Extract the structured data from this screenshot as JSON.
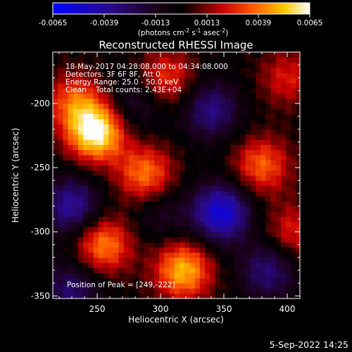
{
  "colorbar": {
    "ticks": [
      "-0.0065",
      "-0.0039",
      "-0.0013",
      "0.0013",
      "0.0039",
      "0.0065"
    ],
    "units_main": "(photons cm",
    "units_sup1": "-2",
    "units_mid1": " s",
    "units_sup2": "-1",
    "units_mid2": " asec",
    "units_sup3": "-2",
    "units_end": ")",
    "range": [
      -0.0065,
      0.0065
    ]
  },
  "chart_data": {
    "type": "heatmap",
    "title": "Reconstructed RHESSI Image",
    "xlabel": "Heliocentric X (arcsec)",
    "ylabel": "Heliocentric Y (arcsec)",
    "xlim": [
      215,
      410
    ],
    "ylim": [
      -352,
      -160
    ],
    "x_ticks": [
      250,
      300,
      350,
      400
    ],
    "y_ticks": [
      -200,
      -250,
      -300,
      -350
    ],
    "annotations": [
      "18-May-2017 04:28:08.000 to 04:34:08.000",
      "Detectors: 3F 6F 8F, Att 0",
      "Energy Range: 25.0 - 50.0 keV",
      "Clean    Total counts: 2.43E+04"
    ],
    "peak_label": "Position of Peak = [249,-222]",
    "peak": [
      249,
      -222
    ],
    "sources": [
      {
        "x": 249,
        "y": -222,
        "value": 0.0065
      },
      {
        "x": 232,
        "y": -198,
        "value": 0.0032
      },
      {
        "x": 305,
        "y": -180,
        "value": 0.003
      },
      {
        "x": 288,
        "y": -255,
        "value": 0.004
      },
      {
        "x": 380,
        "y": -248,
        "value": 0.0036
      },
      {
        "x": 255,
        "y": -310,
        "value": 0.0042
      },
      {
        "x": 318,
        "y": -330,
        "value": 0.005
      },
      {
        "x": 405,
        "y": -300,
        "value": 0.0026
      },
      {
        "x": 400,
        "y": -180,
        "value": 0.0024
      },
      {
        "x": 340,
        "y": -205,
        "value": -0.0034
      },
      {
        "x": 230,
        "y": -280,
        "value": -0.004
      },
      {
        "x": 348,
        "y": -285,
        "value": -0.0055
      },
      {
        "x": 280,
        "y": -200,
        "value": -0.002
      },
      {
        "x": 230,
        "y": -345,
        "value": -0.003
      },
      {
        "x": 385,
        "y": -330,
        "value": -0.0032
      },
      {
        "x": 300,
        "y": -285,
        "value": -0.0016
      }
    ]
  },
  "footer": {
    "date": "5-Sep-2022 14:25"
  },
  "colors": {
    "background": "#000000",
    "text": "#ffffff"
  }
}
